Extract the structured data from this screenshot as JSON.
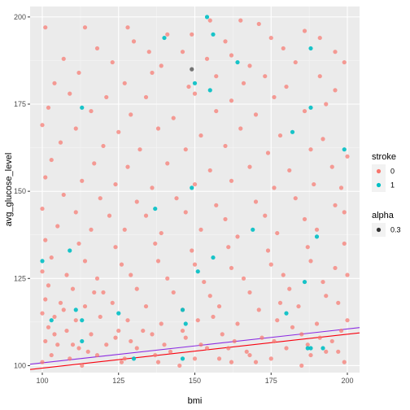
{
  "chart_data": {
    "type": "scatter",
    "xlabel": "bmi",
    "ylabel": "avg_glucose_level",
    "xlim": [
      96,
      204
    ],
    "ylim": [
      98,
      203
    ],
    "x_ticks": [
      "100",
      "125",
      "150",
      "175",
      "200"
    ],
    "y_ticks": [
      "100",
      "125",
      "150",
      "175",
      "200"
    ],
    "grid": true,
    "legend": {
      "placement": "right",
      "stroke": {
        "title": "stroke",
        "entries": [
          {
            "label": "0",
            "color": "#F8766D"
          },
          {
            "label": "1",
            "color": "#00BFC4"
          }
        ]
      },
      "alpha": {
        "title": "alpha",
        "entries": [
          {
            "label": "0.3",
            "color": "#333333"
          }
        ]
      }
    },
    "trend_lines": [
      {
        "color": "#F8000D",
        "x": [
          96,
          204
        ],
        "y": [
          98.9,
          109.4
        ]
      },
      {
        "color": "#8B2BE2",
        "x": [
          96,
          204
        ],
        "y": [
          100.4,
          110.9
        ]
      }
    ],
    "series": [
      {
        "name": "0",
        "color": "#F8766D",
        "points": [
          [
            101,
            197
          ],
          [
            114,
            197
          ],
          [
            128,
            197
          ],
          [
            141,
            195
          ],
          [
            149,
            195
          ],
          [
            155,
            199
          ],
          [
            165,
            199
          ],
          [
            171,
            198
          ],
          [
            186,
            196
          ],
          [
            191,
            194
          ],
          [
            130,
            193
          ],
          [
            160,
            193
          ],
          [
            175,
            194
          ],
          [
            118,
            191
          ],
          [
            135,
            190
          ],
          [
            146,
            190
          ],
          [
            162,
            189
          ],
          [
            179,
            191
          ],
          [
            196,
            190
          ],
          [
            107,
            188
          ],
          [
            123,
            187
          ],
          [
            139,
            186
          ],
          [
            154,
            188
          ],
          [
            168,
            186
          ],
          [
            183,
            187
          ],
          [
            199,
            187
          ],
          [
            112,
            184
          ],
          [
            136,
            184
          ],
          [
            157,
            183
          ],
          [
            173,
            183
          ],
          [
            191,
            183
          ],
          [
            104,
            181
          ],
          [
            127,
            181
          ],
          [
            148,
            180
          ],
          [
            166,
            181
          ],
          [
            180,
            180
          ],
          [
            196,
            179
          ],
          [
            109,
            178
          ],
          [
            121,
            177
          ],
          [
            134,
            177
          ],
          [
            150,
            178
          ],
          [
            162,
            176
          ],
          [
            176,
            177
          ],
          [
            193,
            175
          ],
          [
            102,
            174
          ],
          [
            116,
            173
          ],
          [
            129,
            172
          ],
          [
            143,
            171
          ],
          [
            157,
            173
          ],
          [
            170,
            172
          ],
          [
            186,
            173
          ],
          [
            100,
            169
          ],
          [
            111,
            168
          ],
          [
            125,
            167
          ],
          [
            138,
            168
          ],
          [
            152,
            166
          ],
          [
            165,
            168
          ],
          [
            178,
            166
          ],
          [
            192,
            165
          ],
          [
            106,
            164
          ],
          [
            120,
            163
          ],
          [
            132,
            162
          ],
          [
            147,
            162
          ],
          [
            160,
            163
          ],
          [
            174,
            161
          ],
          [
            188,
            162
          ],
          [
            200,
            160
          ],
          [
            103,
            159
          ],
          [
            117,
            158
          ],
          [
            128,
            157
          ],
          [
            141,
            158
          ],
          [
            155,
            156
          ],
          [
            168,
            157
          ],
          [
            181,
            156
          ],
          [
            195,
            157
          ],
          [
            101,
            154
          ],
          [
            113,
            153
          ],
          [
            124,
            152
          ],
          [
            136,
            151
          ],
          [
            150,
            152
          ],
          [
            162,
            153
          ],
          [
            176,
            151
          ],
          [
            189,
            152
          ],
          [
            198,
            151
          ],
          [
            107,
            149
          ],
          [
            119,
            148
          ],
          [
            131,
            147
          ],
          [
            144,
            148
          ],
          [
            157,
            146
          ],
          [
            170,
            147
          ],
          [
            183,
            148
          ],
          [
            196,
            146
          ],
          [
            100,
            145
          ],
          [
            111,
            144
          ],
          [
            122,
            143
          ],
          [
            134,
            143
          ],
          [
            147,
            144
          ],
          [
            160,
            142
          ],
          [
            173,
            143
          ],
          [
            186,
            142
          ],
          [
            199,
            144
          ],
          [
            105,
            140
          ],
          [
            116,
            139
          ],
          [
            127,
            139
          ],
          [
            139,
            138
          ],
          [
            152,
            139
          ],
          [
            164,
            137
          ],
          [
            177,
            138
          ],
          [
            190,
            139
          ],
          [
            101,
            136
          ],
          [
            112,
            135
          ],
          [
            124,
            134
          ],
          [
            137,
            135
          ],
          [
            149,
            133
          ],
          [
            161,
            134
          ],
          [
            174,
            133
          ],
          [
            187,
            134
          ],
          [
            199,
            135
          ],
          [
            103,
            131
          ],
          [
            114,
            130
          ],
          [
            126,
            129
          ],
          [
            138,
            130
          ],
          [
            150,
            129
          ],
          [
            162,
            128
          ],
          [
            175,
            129
          ],
          [
            188,
            130
          ],
          [
            196,
            128
          ],
          [
            100,
            127
          ],
          [
            108,
            126
          ],
          [
            118,
            125
          ],
          [
            129,
            126
          ],
          [
            141,
            125
          ],
          [
            153,
            124
          ],
          [
            166,
            125
          ],
          [
            179,
            126
          ],
          [
            192,
            124
          ],
          [
            200,
            126
          ],
          [
            102,
            123
          ],
          [
            110,
            122
          ],
          [
            120,
            121
          ],
          [
            131,
            122
          ],
          [
            143,
            121
          ],
          [
            155,
            120
          ],
          [
            168,
            121
          ],
          [
            181,
            122
          ],
          [
            193,
            120
          ],
          [
            101,
            119
          ],
          [
            106,
            118
          ],
          [
            114,
            117
          ],
          [
            123,
            118
          ],
          [
            134,
            117
          ],
          [
            146,
            116
          ],
          [
            158,
            117
          ],
          [
            171,
            116
          ],
          [
            184,
            117
          ],
          [
            197,
            118
          ],
          [
            100,
            115
          ],
          [
            104,
            114
          ],
          [
            111,
            113
          ],
          [
            119,
            114
          ],
          [
            128,
            113
          ],
          [
            139,
            112
          ],
          [
            151,
            113
          ],
          [
            164,
            112
          ],
          [
            177,
            113
          ],
          [
            190,
            112
          ],
          [
            200,
            113
          ],
          [
            102,
            111
          ],
          [
            108,
            110
          ],
          [
            116,
            109
          ],
          [
            125,
            110
          ],
          [
            136,
            109
          ],
          [
            147,
            108
          ],
          [
            159,
            109
          ],
          [
            172,
            108
          ],
          [
            185,
            109
          ],
          [
            198,
            110
          ],
          [
            101,
            107
          ],
          [
            105,
            106
          ],
          [
            112,
            105
          ],
          [
            121,
            106
          ],
          [
            131,
            105
          ],
          [
            142,
            104
          ],
          [
            154,
            105
          ],
          [
            167,
            104
          ],
          [
            180,
            105
          ],
          [
            193,
            104
          ],
          [
            103,
            103
          ],
          [
            109,
            102
          ],
          [
            118,
            103
          ],
          [
            127,
            102
          ],
          [
            138,
            101
          ],
          [
            150,
            102
          ],
          [
            162,
            101
          ],
          [
            175,
            102
          ],
          [
            188,
            103
          ],
          [
            199,
            101
          ],
          [
            100,
            101
          ],
          [
            113,
            100
          ],
          [
            126,
            101
          ],
          [
            145,
            100
          ],
          [
            170,
            101
          ],
          [
            185,
            100
          ],
          [
            107,
            116
          ],
          [
            117,
            121
          ],
          [
            133,
            110
          ],
          [
            140,
            106
          ],
          [
            156,
            114
          ],
          [
            163,
            107
          ],
          [
            178,
            118
          ],
          [
            191,
            108
          ],
          [
            110,
            106
          ],
          [
            124,
            108
          ],
          [
            146,
            110
          ],
          [
            161,
            105
          ],
          [
            182,
            111
          ],
          [
            195,
            107
          ],
          [
            115,
            104
          ],
          [
            129,
            107
          ],
          [
            152,
            106
          ],
          [
            168,
            103
          ],
          [
            187,
            106
          ],
          [
            104,
            109
          ],
          [
            137,
            103
          ],
          [
            158,
            102
          ],
          [
            176,
            107
          ],
          [
            197,
            104
          ]
        ]
      },
      {
        "name": "1",
        "color": "#00BFC4",
        "points": [
          [
            100,
            130
          ],
          [
            103,
            113
          ],
          [
            109,
            133
          ],
          [
            111,
            116
          ],
          [
            113,
            113
          ],
          [
            113,
            107
          ],
          [
            113,
            174
          ],
          [
            130,
            102
          ],
          [
            137,
            145
          ],
          [
            140,
            194
          ],
          [
            146,
            116
          ],
          [
            147,
            112
          ],
          [
            149,
            151
          ],
          [
            150,
            181
          ],
          [
            151,
            127
          ],
          [
            154,
            200
          ],
          [
            155,
            179
          ],
          [
            156,
            195
          ],
          [
            156,
            131
          ],
          [
            164,
            187
          ],
          [
            169,
            139
          ],
          [
            182,
            167
          ],
          [
            186,
            124
          ],
          [
            187,
            105
          ],
          [
            188,
            191
          ],
          [
            188,
            174
          ],
          [
            188,
            105
          ],
          [
            190,
            137
          ],
          [
            192,
            105
          ],
          [
            199,
            162
          ],
          [
            146,
            102
          ],
          [
            180,
            115
          ],
          [
            125,
            115
          ]
        ]
      },
      {
        "name": "",
        "color": "#666666",
        "points": [
          [
            149,
            185
          ]
        ]
      }
    ]
  }
}
